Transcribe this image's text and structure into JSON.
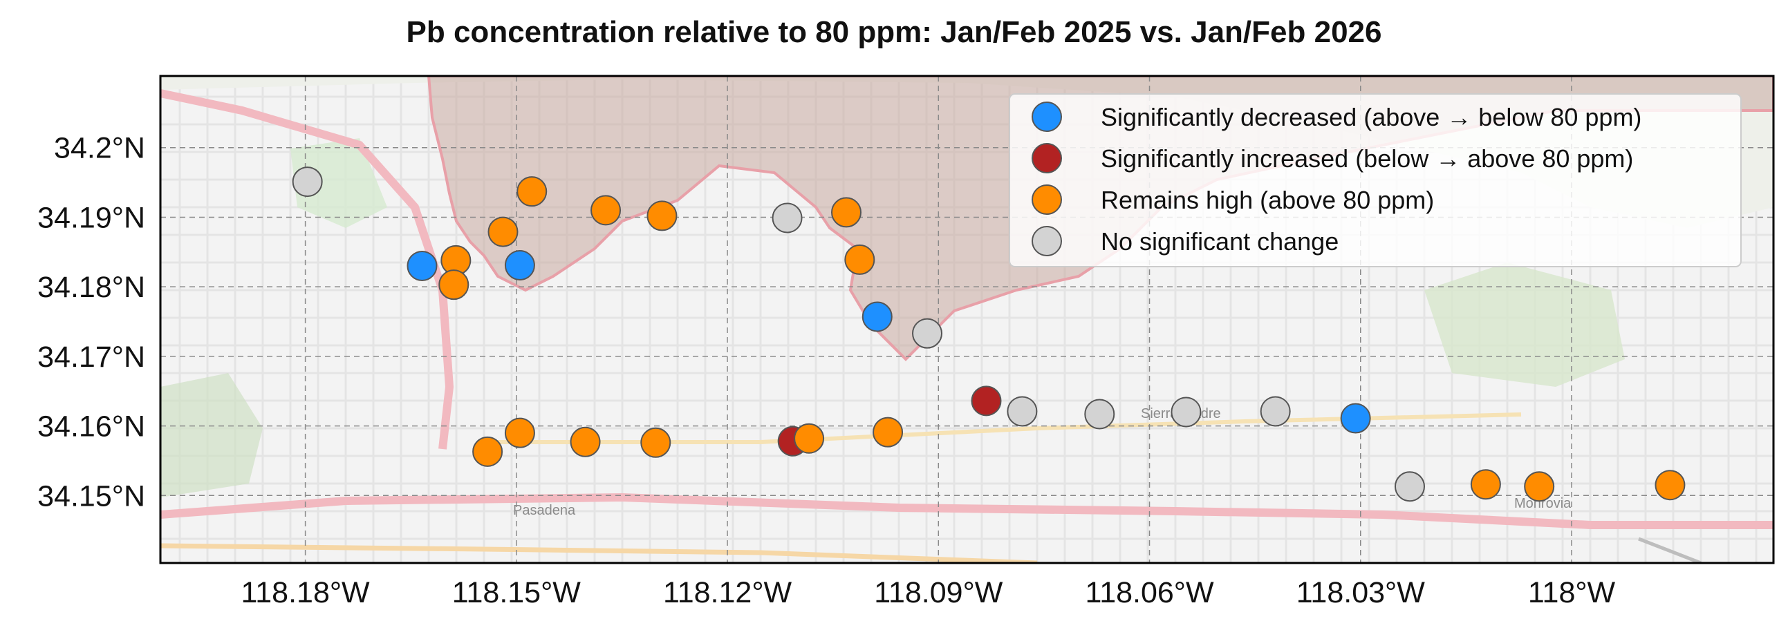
{
  "title": "Pb concentration relative to 80 ppm: Jan/Feb 2025 vs. Jan/Feb 2026",
  "axes": {
    "lon_ticks": [
      {
        "value": -118.18,
        "label": "118.18°W"
      },
      {
        "value": -118.15,
        "label": "118.15°W"
      },
      {
        "value": -118.12,
        "label": "118.12°W"
      },
      {
        "value": -118.09,
        "label": "118.09°W"
      },
      {
        "value": -118.06,
        "label": "118.06°W"
      },
      {
        "value": -118.03,
        "label": "118.03°W"
      },
      {
        "value": -118.0,
        "label": "118°W"
      }
    ],
    "lat_ticks": [
      {
        "value": 34.2,
        "label": "34.2°N"
      },
      {
        "value": 34.19,
        "label": "34.19°N"
      },
      {
        "value": 34.18,
        "label": "34.18°N"
      },
      {
        "value": 34.17,
        "label": "34.17°N"
      },
      {
        "value": 34.16,
        "label": "34.16°N"
      },
      {
        "value": 34.15,
        "label": "34.15°N"
      }
    ],
    "lon_range": [
      -118.2006,
      -117.9713
    ],
    "lat_range": [
      34.1403,
      34.2103
    ]
  },
  "colors": {
    "decreased": "#1e90ff",
    "increased": "#b22222",
    "remains_high": "#ff8c00",
    "no_change": "#d3d3d3",
    "fire_perimeter_fill": "#c9a9a0",
    "fire_perimeter_stroke": "#e8a0a8"
  },
  "legend": {
    "position": "top-right",
    "items": [
      {
        "key": "decreased",
        "label": "Significantly decreased (above → below 80 ppm)"
      },
      {
        "key": "increased",
        "label": "Significantly increased (below → above 80 ppm)"
      },
      {
        "key": "remains_high",
        "label": "Remains high (above 80 ppm)"
      },
      {
        "key": "no_change",
        "label": "No significant change"
      }
    ]
  },
  "basemap_labels": {
    "pasadena": "Pasadena",
    "sierra_madre": "Sierra Madre",
    "monrovia": "Monrovia"
  },
  "chart_data": {
    "type": "scatter",
    "title": "Pb concentration relative to 80 ppm: Jan/Feb 2025 vs. Jan/Feb 2026",
    "xlabel": "",
    "ylabel": "",
    "xlim": [
      -118.2006,
      -117.9713
    ],
    "ylim": [
      34.1403,
      34.2103
    ],
    "grid": true,
    "legend_position": "top-right",
    "series": [
      {
        "name": "Significantly decreased (above → below 80 ppm)",
        "key": "decreased",
        "points": [
          [
            -118.1634,
            34.183
          ],
          [
            -118.1495,
            34.1831
          ],
          [
            -118.0987,
            34.1757
          ],
          [
            -118.0307,
            34.1611
          ]
        ]
      },
      {
        "name": "Significantly increased (below → above 80 ppm)",
        "key": "increased",
        "points": [
          [
            -118.0832,
            34.1636
          ],
          [
            -118.1107,
            34.1578
          ]
        ]
      },
      {
        "name": "Remains high (above 80 ppm)",
        "key": "remains_high",
        "points": [
          [
            -118.1586,
            34.1838
          ],
          [
            -118.1589,
            34.1803
          ],
          [
            -118.1519,
            34.1879
          ],
          [
            -118.1478,
            34.1937
          ],
          [
            -118.1373,
            34.191
          ],
          [
            -118.1293,
            34.1902
          ],
          [
            -118.1031,
            34.1907
          ],
          [
            -118.1012,
            34.1839
          ],
          [
            -118.1541,
            34.1563
          ],
          [
            -118.1495,
            34.159
          ],
          [
            -118.1402,
            34.1577
          ],
          [
            -118.1302,
            34.1576
          ],
          [
            -118.1084,
            34.1582
          ],
          [
            -118.0972,
            34.1591
          ],
          [
            -118.0046,
            34.1513
          ],
          [
            -118.0122,
            34.1516
          ],
          [
            -117.986,
            34.1515
          ]
        ]
      },
      {
        "name": "No significant change",
        "key": "no_change",
        "points": [
          [
            -118.1797,
            34.1951
          ],
          [
            -118.1115,
            34.1899
          ],
          [
            -118.0916,
            34.1733
          ],
          [
            -118.0781,
            34.1621
          ],
          [
            -118.0671,
            34.1617
          ],
          [
            -118.0548,
            34.162
          ],
          [
            -118.0421,
            34.1621
          ],
          [
            -118.023,
            34.1513
          ]
        ]
      }
    ]
  }
}
